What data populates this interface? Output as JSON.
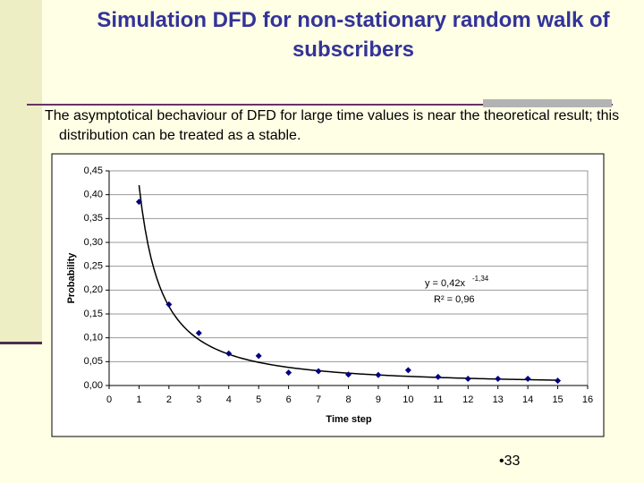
{
  "title": "Simulation DFD for non-stationary random walk of subscribers",
  "body": "The asymptotical bechaviour of DFD for large time values is near the theoretical result; this distribution can be treated as a stable.",
  "page_number": "•33",
  "chart_data": {
    "type": "scatter",
    "x_label": "Time step",
    "y_label": "Probability",
    "x": [
      1,
      2,
      3,
      4,
      5,
      6,
      7,
      8,
      9,
      10,
      11,
      12,
      13,
      14,
      15
    ],
    "values": [
      0.385,
      0.17,
      0.11,
      0.067,
      0.062,
      0.027,
      0.03,
      0.023,
      0.022,
      0.032,
      0.018,
      0.014,
      0.014,
      0.014,
      0.01
    ],
    "color": "#000080",
    "xlim": [
      0,
      16
    ],
    "xticks": [
      0,
      1,
      2,
      3,
      4,
      5,
      6,
      7,
      8,
      9,
      10,
      11,
      12,
      13,
      14,
      15,
      16
    ],
    "ylim": [
      0,
      0.45
    ],
    "yticks": [
      {
        "value": 0,
        "label": "0,00"
      },
      {
        "value": 0.05,
        "label": "0,05"
      },
      {
        "value": 0.1,
        "label": "0,10"
      },
      {
        "value": 0.15,
        "label": "0,15"
      },
      {
        "value": 0.2,
        "label": "0,20"
      },
      {
        "value": 0.25,
        "label": "0,25"
      },
      {
        "value": 0.3,
        "label": "0,30"
      },
      {
        "value": 0.35,
        "label": "0,35"
      },
      {
        "value": 0.4,
        "label": "0,40"
      },
      {
        "value": 0.45,
        "label": "0,45"
      }
    ],
    "grid": true,
    "trendline": {
      "a": 0.42,
      "b": -1.34,
      "equation_label": "y = 0,42x",
      "exponent_label": "-1,34",
      "r2_label": "R² = 0,96"
    }
  }
}
